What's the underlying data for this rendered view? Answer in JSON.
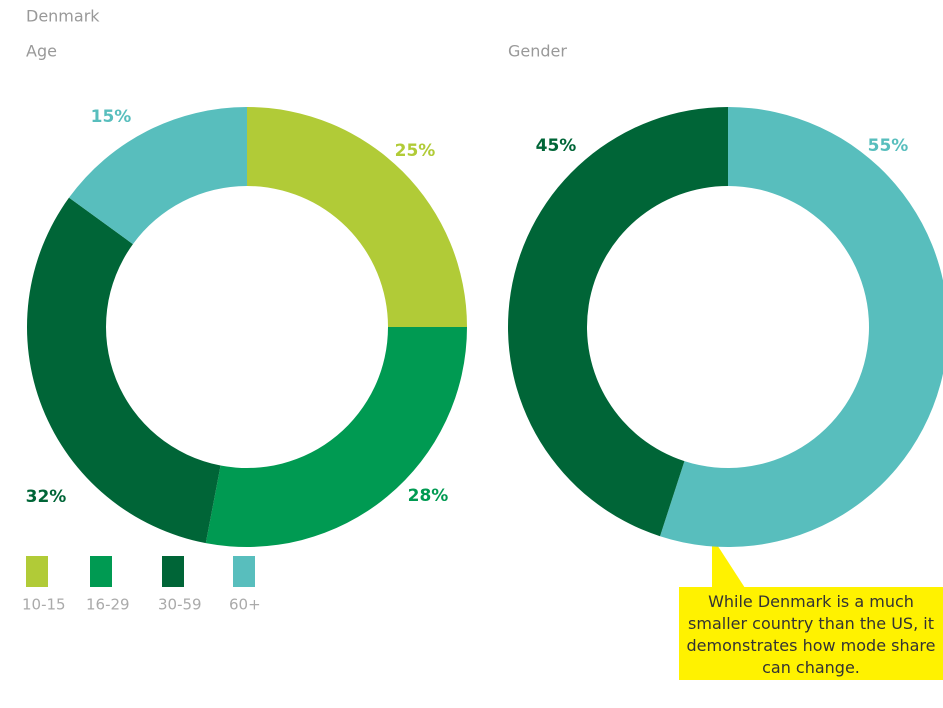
{
  "header": "Denmark",
  "chart_data": [
    {
      "type": "pie",
      "donut": true,
      "title": "Age",
      "categories": [
        "10-15",
        "16-29",
        "30-59",
        "60+"
      ],
      "values": [
        25,
        28,
        32,
        15
      ],
      "value_labels": [
        "25%",
        "28%",
        "32%",
        "15%"
      ],
      "colors": [
        "#b1cb37",
        "#009a52",
        "#006537",
        "#58bebd"
      ],
      "legend": true
    },
    {
      "type": "pie",
      "donut": true,
      "title": "Gender",
      "categories": [
        null,
        null
      ],
      "values": [
        55,
        45
      ],
      "value_labels": [
        "55%",
        "45%"
      ],
      "colors": [
        "#58bebd",
        "#006537"
      ],
      "legend": false,
      "annotation": "While Denmark is a much smaller country than the US, it demonstrates how mode share can change."
    }
  ]
}
